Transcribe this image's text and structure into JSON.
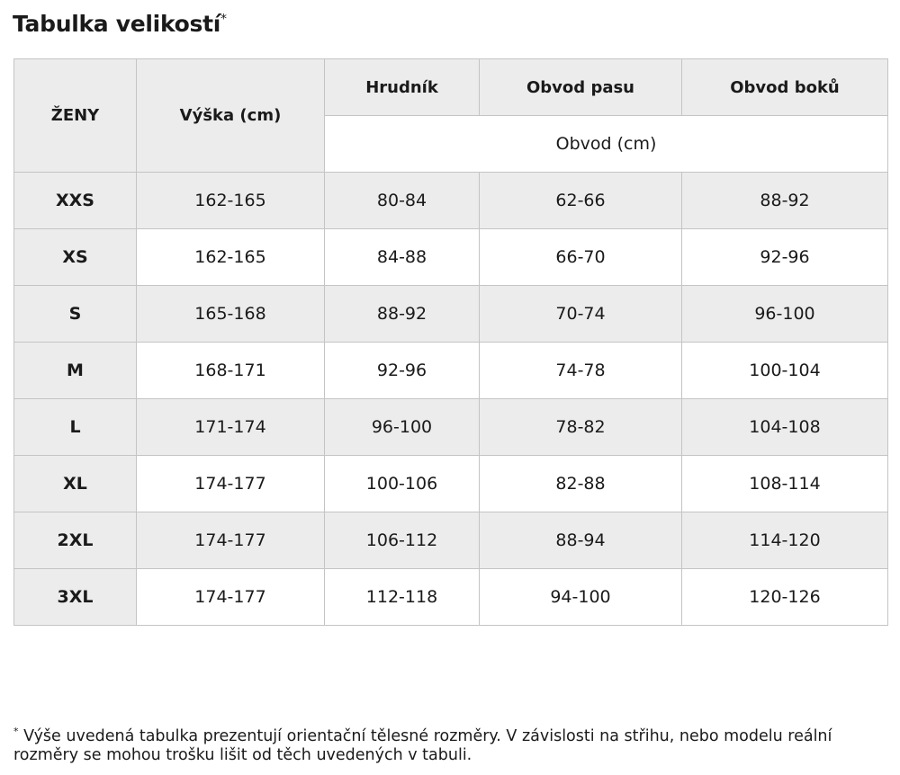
{
  "title": {
    "text": "Tabulka velikostí",
    "mark": "*"
  },
  "table": {
    "header": {
      "group": "ŽENY",
      "height": "Výška (cm)",
      "measures": [
        "Hrudník",
        "Obvod pasu",
        "Obvod boků"
      ],
      "unit": "Obvod (cm)"
    },
    "rows": [
      [
        "XXS",
        "162-165",
        "80-84",
        "62-66",
        "88-92"
      ],
      [
        "XS",
        "162-165",
        "84-88",
        "66-70",
        "92-96"
      ],
      [
        "S",
        "165-168",
        "88-92",
        "70-74",
        "96-100"
      ],
      [
        "M",
        "168-171",
        "92-96",
        "74-78",
        "100-104"
      ],
      [
        "L",
        "171-174",
        "96-100",
        "78-82",
        "104-108"
      ],
      [
        "XL",
        "174-177",
        "100-106",
        "82-88",
        "108-114"
      ],
      [
        "2XL",
        "174-177",
        "106-112",
        "88-94",
        "114-120"
      ],
      [
        "3XL",
        "174-177",
        "112-118",
        "94-100",
        "120-126"
      ]
    ]
  },
  "footnote": {
    "mark": "*",
    "text": "Výše uvedená tabulka prezentují orientační tělesné rozměry. V závislosti na střihu, nebo modelu reální rozměry se mohou trošku lišit od těch uvedených v tabuli."
  }
}
